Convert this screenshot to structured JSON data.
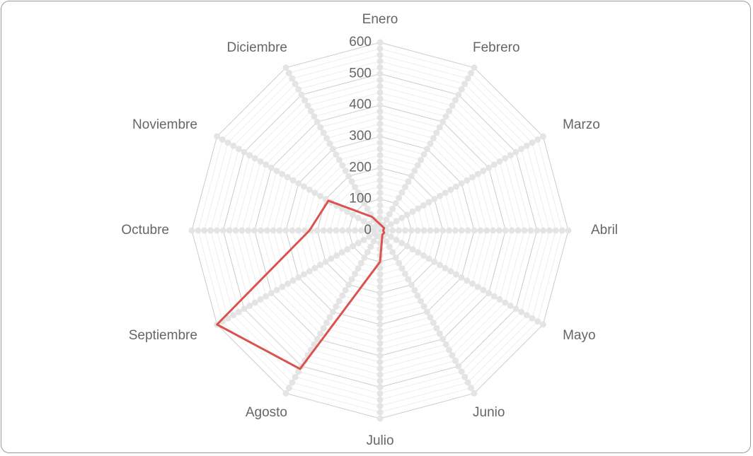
{
  "chart_data": {
    "type": "radar",
    "categories": [
      "Enero",
      "Febrero",
      "Marzo",
      "Abril",
      "Mayo",
      "Junio",
      "Julio",
      "Agosto",
      "Septiembre",
      "Octubre",
      "Noviembre",
      "Diciembre"
    ],
    "series": [
      {
        "color": "#d9534f",
        "values": [
          20,
          15,
          15,
          10,
          15,
          15,
          100,
          510,
          600,
          225,
          190,
          50
        ]
      }
    ],
    "ylim": [
      0,
      600
    ],
    "yticks": [
      0,
      100,
      200,
      300,
      400,
      500,
      600
    ],
    "grid": true
  }
}
